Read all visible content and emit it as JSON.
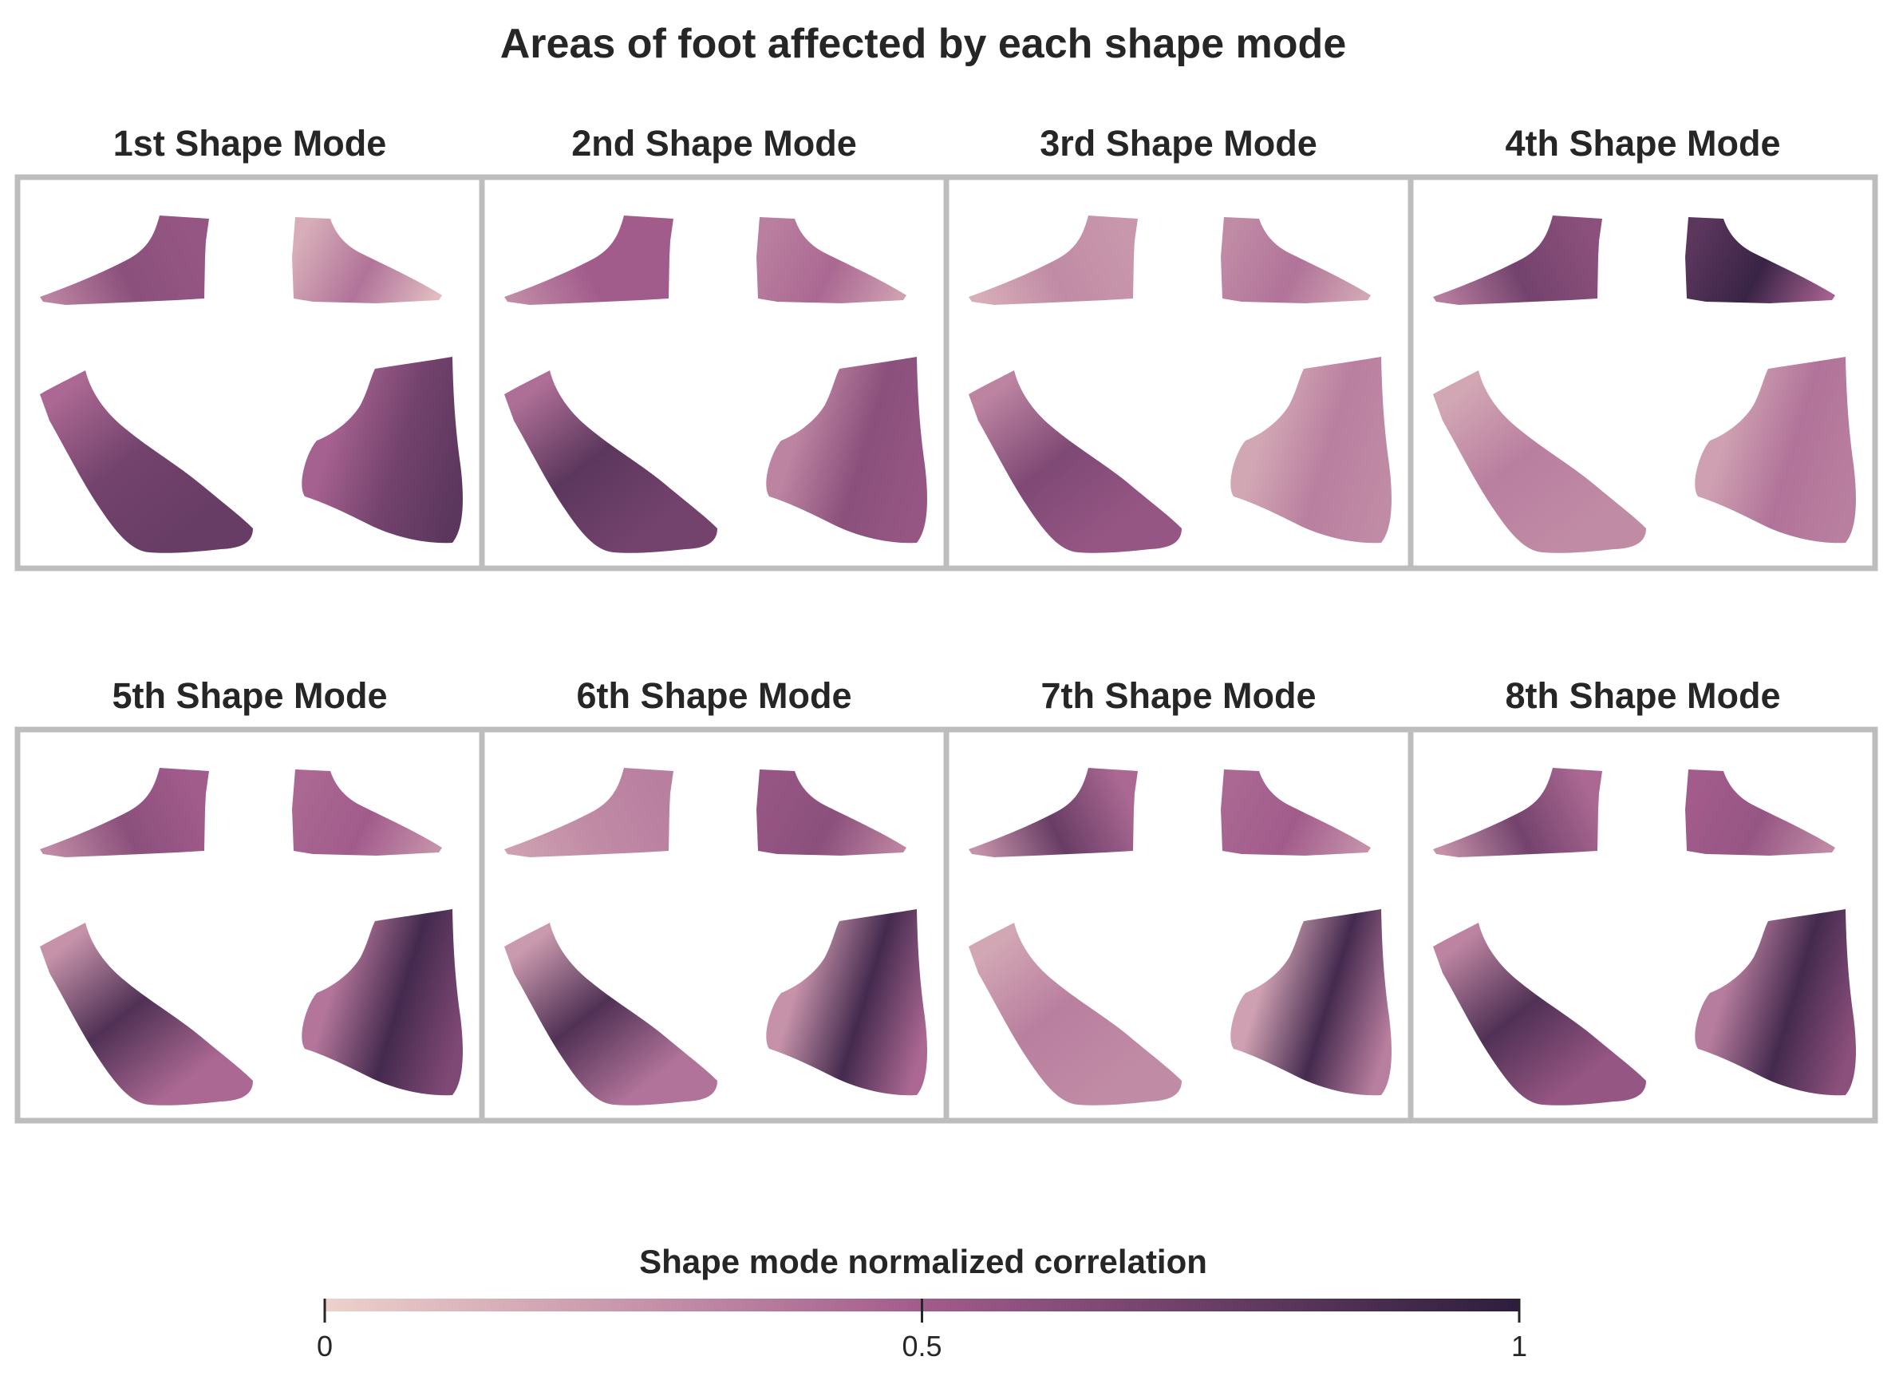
{
  "title": "Areas of foot affected by each shape mode",
  "panels": [
    {
      "label": "1st Shape Mode",
      "shade": [
        0.55,
        0.15,
        0.75,
        0.8,
        0.1,
        0.82
      ],
      "spot": [
        0.6,
        0.4,
        0.7,
        0.7,
        0.2,
        0.9
      ]
    },
    {
      "label": "2nd Shape Mode",
      "shade": [
        0.5,
        0.35,
        0.7,
        0.55,
        0.2,
        0.72
      ],
      "spot": [
        0.5,
        0.45,
        0.8,
        0.6,
        0.3,
        0.8
      ]
    },
    {
      "label": "3rd Shape Mode",
      "shade": [
        0.25,
        0.3,
        0.55,
        0.3,
        0.3,
        0.4
      ],
      "spot": [
        0.3,
        0.4,
        0.65,
        0.35,
        0.35,
        0.85
      ]
    },
    {
      "label": "4th Shape Mode",
      "shade": [
        0.6,
        0.8,
        0.3,
        0.35,
        0.45,
        0.75
      ],
      "spot": [
        0.7,
        0.95,
        0.35,
        0.4,
        0.5,
        0.95
      ]
    },
    {
      "label": "5th Shape Mode",
      "shade": [
        0.5,
        0.45,
        0.45,
        0.65,
        0.5,
        0.35
      ],
      "spot": [
        0.6,
        0.5,
        0.85,
        0.9,
        0.55,
        0.35
      ]
    },
    {
      "label": "6th Shape Mode",
      "shade": [
        0.35,
        0.55,
        0.4,
        0.45,
        0.35,
        0.3
      ],
      "spot": [
        0.3,
        0.6,
        0.85,
        0.9,
        0.4,
        0.6
      ]
    },
    {
      "label": "7th Shape Mode",
      "shade": [
        0.45,
        0.45,
        0.3,
        0.35,
        0.25,
        0.35
      ],
      "spot": [
        0.75,
        0.5,
        0.35,
        0.9,
        0.3,
        0.4
      ]
    },
    {
      "label": "8th Shape Mode",
      "shade": [
        0.45,
        0.5,
        0.55,
        0.6,
        0.55,
        0.5
      ],
      "spot": [
        0.7,
        0.55,
        0.85,
        0.9,
        0.6,
        0.9
      ]
    }
  ],
  "colorbar": {
    "title": "Shape mode normalized correlation",
    "ticks": [
      "0",
      "0.5",
      "1"
    ],
    "tick_values": [
      0,
      0.5,
      1
    ],
    "color_low": "#edd1cb",
    "color_mid": "#a25c8c",
    "color_high": "#2d1e3e"
  },
  "frame_color": "#bdbdbd"
}
